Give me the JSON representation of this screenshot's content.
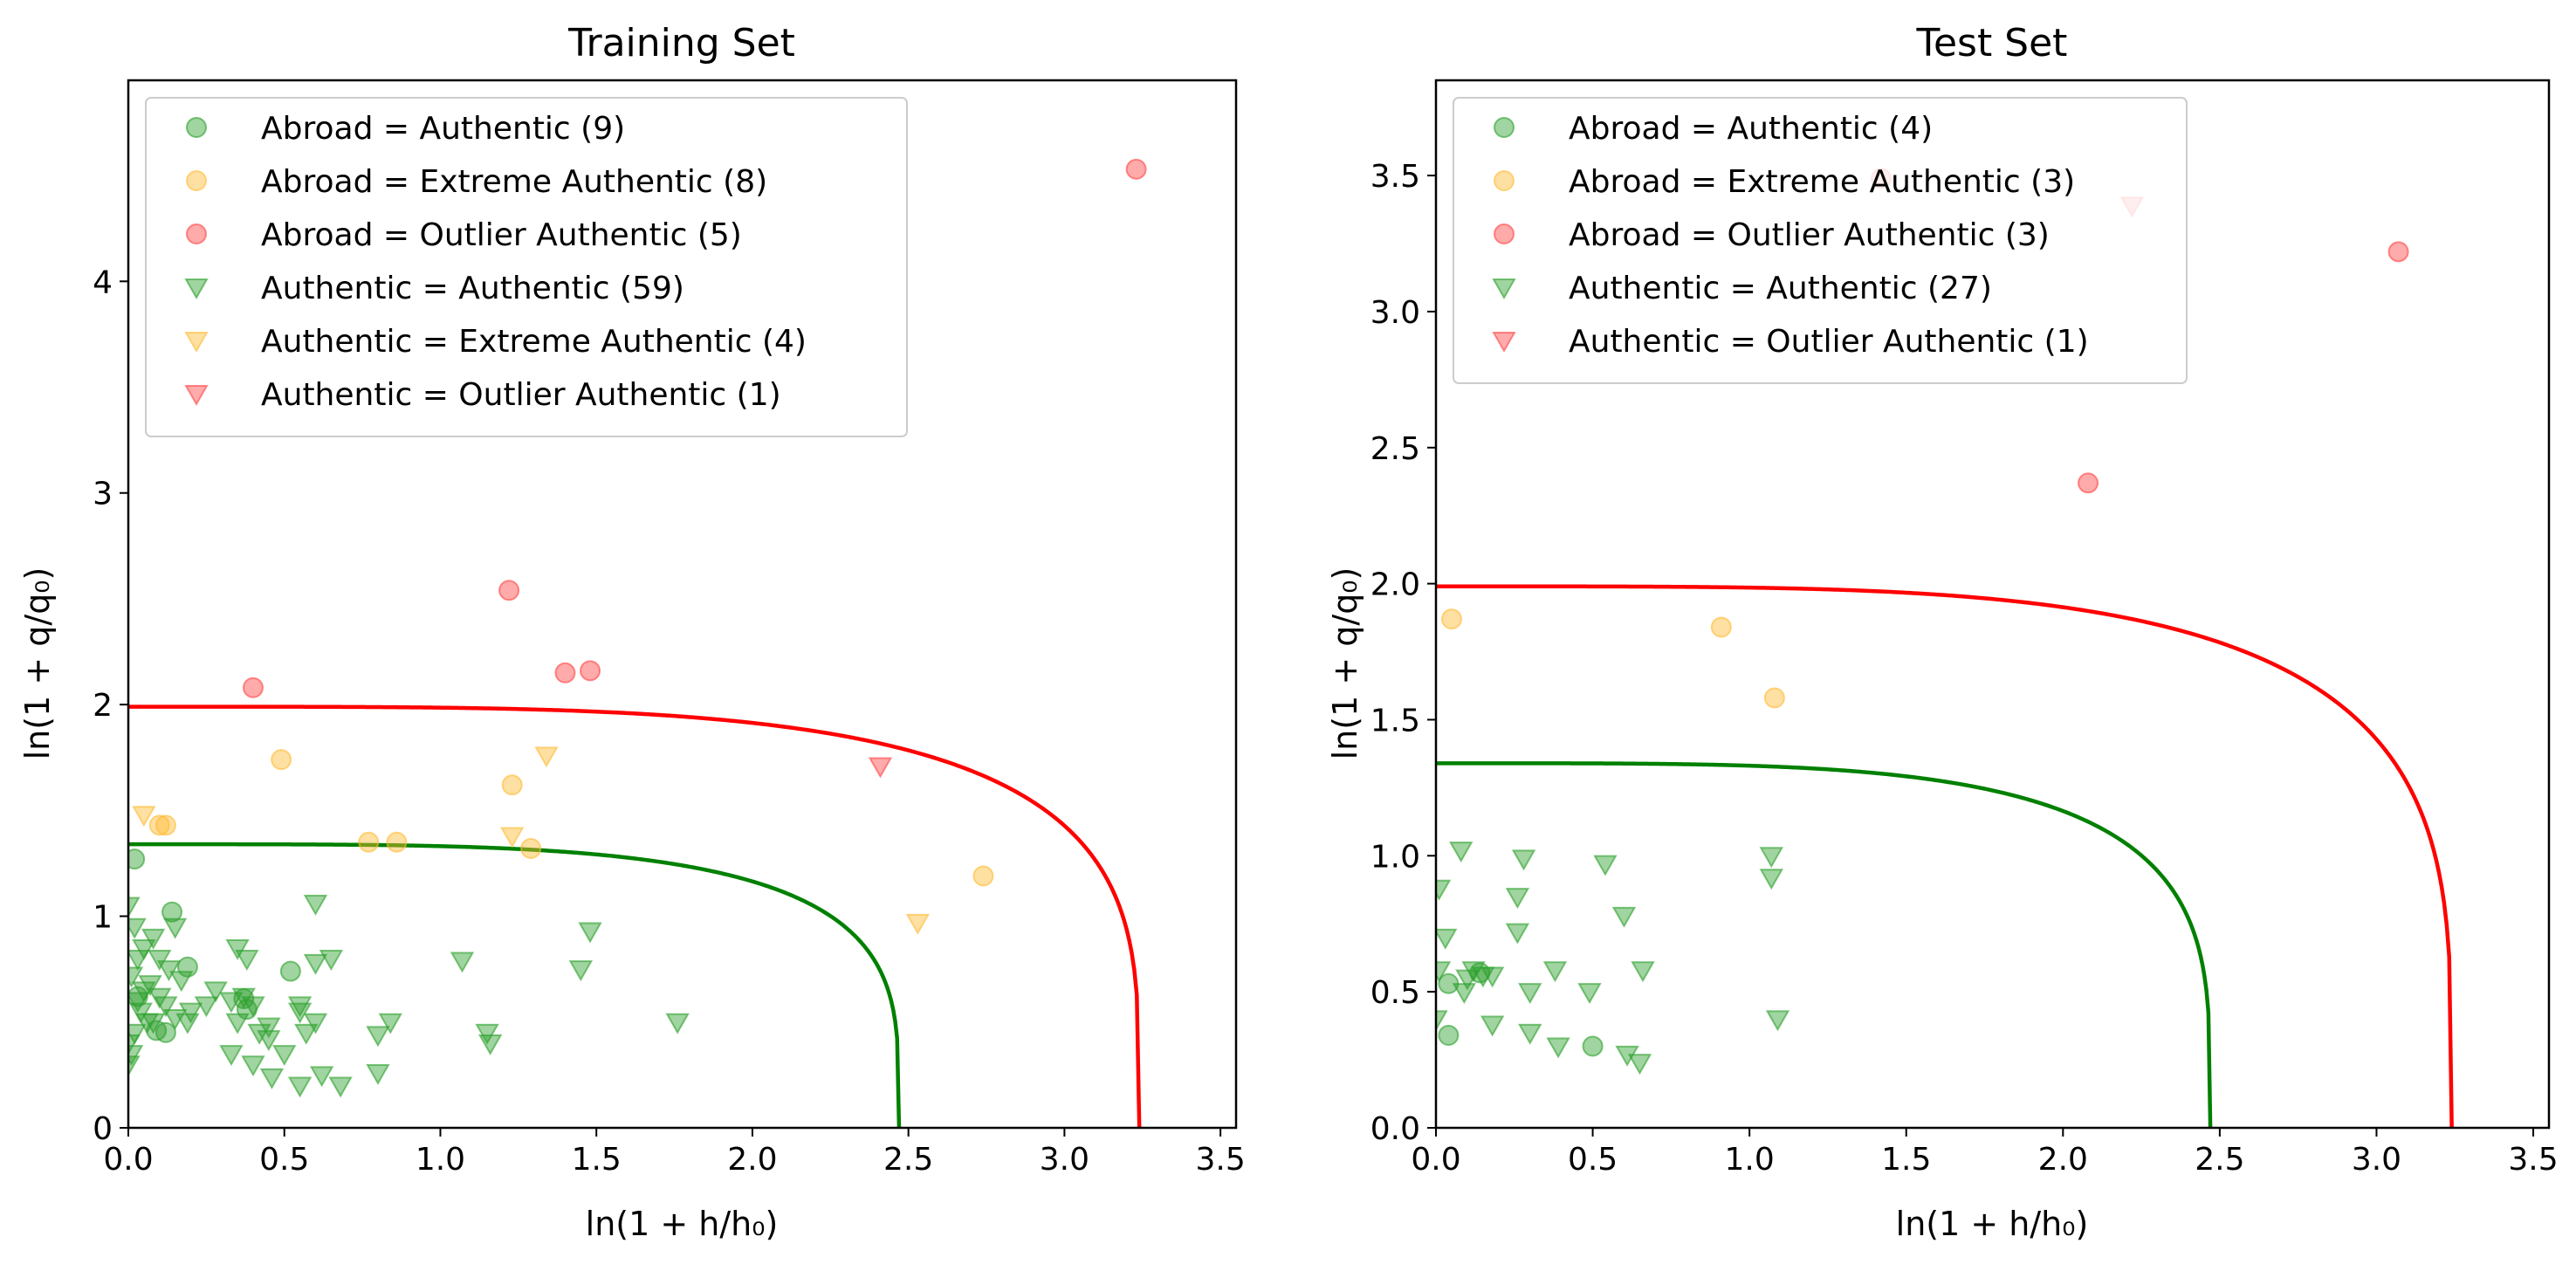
{
  "chart_data": [
    {
      "type": "scatter",
      "title": "Training Set",
      "xlabel": "ln(1 + h/h₀)",
      "ylabel": "ln(1 + q/q₀)",
      "xlim": [
        0,
        3.55
      ],
      "ylim": [
        0,
        4.95
      ],
      "xticks": [
        "0.0",
        "0.5",
        "1.0",
        "1.5",
        "2.0",
        "2.5",
        "3.0",
        "3.5"
      ],
      "yticks": [
        "0",
        "1",
        "2",
        "3",
        "4"
      ],
      "legend_position": "upper-left",
      "series": [
        {
          "name": "Abroad = Authentic (9)",
          "marker": "circle",
          "color": "#2ca02c",
          "points": [
            [
              0.02,
              1.27
            ],
            [
              0.14,
              1.02
            ],
            [
              0.19,
              0.76
            ],
            [
              0.09,
              0.46
            ],
            [
              0.12,
              0.45
            ],
            [
              0.37,
              0.61
            ],
            [
              0.38,
              0.56
            ],
            [
              0.52,
              0.74
            ],
            [
              0.03,
              0.62
            ]
          ]
        },
        {
          "name": "Abroad = Extreme Authentic (8)",
          "marker": "circle",
          "color": "#ffbb33",
          "points": [
            [
              0.1,
              1.43
            ],
            [
              0.12,
              1.43
            ],
            [
              0.49,
              1.74
            ],
            [
              0.77,
              1.35
            ],
            [
              0.86,
              1.35
            ],
            [
              1.23,
              1.62
            ],
            [
              1.29,
              1.32
            ],
            [
              2.74,
              1.19
            ]
          ]
        },
        {
          "name": "Abroad = Outlier Authentic (5)",
          "marker": "circle",
          "color": "#ff4444",
          "points": [
            [
              0.4,
              2.08
            ],
            [
              1.22,
              2.54
            ],
            [
              1.4,
              2.15
            ],
            [
              1.48,
              2.16
            ],
            [
              3.23,
              4.53
            ]
          ]
        },
        {
          "name": "Authentic = Authentic (59)",
          "marker": "triangle-down",
          "color": "#2ca02c",
          "points": [
            [
              0.0,
              1.05
            ],
            [
              0.02,
              0.95
            ],
            [
              0.05,
              0.85
            ],
            [
              0.08,
              0.9
            ],
            [
              0.1,
              0.8
            ],
            [
              0.13,
              0.75
            ],
            [
              0.15,
              0.95
            ],
            [
              0.17,
              0.7
            ],
            [
              0.2,
              0.55
            ],
            [
              0.19,
              0.5
            ],
            [
              0.01,
              0.72
            ],
            [
              0.03,
              0.6
            ],
            [
              0.04,
              0.55
            ],
            [
              0.06,
              0.5
            ],
            [
              0.02,
              0.45
            ],
            [
              0.0,
              0.4
            ],
            [
              0.01,
              0.35
            ],
            [
              0.0,
              0.3
            ],
            [
              0.05,
              0.65
            ],
            [
              0.07,
              0.68
            ],
            [
              0.1,
              0.62
            ],
            [
              0.12,
              0.58
            ],
            [
              0.03,
              0.8
            ],
            [
              0.08,
              0.5
            ],
            [
              0.15,
              0.52
            ],
            [
              0.35,
              0.85
            ],
            [
              0.38,
              0.8
            ],
            [
              0.33,
              0.6
            ],
            [
              0.37,
              0.62
            ],
            [
              0.4,
              0.58
            ],
            [
              0.35,
              0.5
            ],
            [
              0.42,
              0.45
            ],
            [
              0.45,
              0.42
            ],
            [
              0.33,
              0.35
            ],
            [
              0.4,
              0.3
            ],
            [
              0.46,
              0.24
            ],
            [
              0.55,
              0.2
            ],
            [
              0.62,
              0.25
            ],
            [
              0.68,
              0.2
            ],
            [
              0.55,
              0.55
            ],
            [
              0.6,
              0.5
            ],
            [
              0.57,
              0.45
            ],
            [
              0.6,
              1.06
            ],
            [
              0.6,
              0.78
            ],
            [
              0.65,
              0.8
            ],
            [
              0.8,
              0.44
            ],
            [
              0.84,
              0.5
            ],
            [
              0.8,
              0.26
            ],
            [
              1.07,
              0.79
            ],
            [
              1.15,
              0.45
            ],
            [
              1.16,
              0.4
            ],
            [
              1.45,
              0.75
            ],
            [
              1.48,
              0.93
            ],
            [
              1.76,
              0.5
            ],
            [
              0.45,
              0.48
            ],
            [
              0.25,
              0.58
            ],
            [
              0.28,
              0.65
            ],
            [
              0.5,
              0.35
            ],
            [
              0.55,
              0.58
            ]
          ]
        },
        {
          "name": "Authentic = Extreme Authentic (4)",
          "marker": "triangle-down",
          "color": "#ffbb33",
          "points": [
            [
              0.05,
              1.48
            ],
            [
              1.23,
              1.38
            ],
            [
              1.34,
              1.76
            ],
            [
              2.53,
              0.97
            ]
          ]
        },
        {
          "name": "Authentic = Outlier Authentic (1)",
          "marker": "triangle-down",
          "color": "#ff4444",
          "points": [
            [
              2.41,
              1.71
            ]
          ]
        }
      ],
      "curves": [
        {
          "color": "#008000",
          "x_intercept": 2.47,
          "y_intercept": 1.34
        },
        {
          "color": "#ff0000",
          "x_intercept": 3.24,
          "y_intercept": 1.99
        }
      ]
    },
    {
      "type": "scatter",
      "title": "Test Set",
      "xlabel": "ln(1 + h/h₀)",
      "ylabel": "ln(1 + q/q₀)",
      "xlim": [
        0,
        3.55
      ],
      "ylim": [
        0,
        3.85
      ],
      "xticks": [
        "0.0",
        "0.5",
        "1.0",
        "1.5",
        "2.0",
        "2.5",
        "3.0",
        "3.5"
      ],
      "yticks": [
        "0.0",
        "0.5",
        "1.0",
        "1.5",
        "2.0",
        "2.5",
        "3.0",
        "3.5"
      ],
      "legend_position": "upper-left",
      "series": [
        {
          "name": "Abroad = Authentic (4)",
          "marker": "circle",
          "color": "#2ca02c",
          "points": [
            [
              0.04,
              0.53
            ],
            [
              0.04,
              0.34
            ],
            [
              0.14,
              0.57
            ],
            [
              0.5,
              0.3
            ]
          ]
        },
        {
          "name": "Abroad = Extreme Authentic (3)",
          "marker": "circle",
          "color": "#ffbb33",
          "points": [
            [
              0.05,
              1.87
            ],
            [
              0.91,
              1.84
            ],
            [
              1.08,
              1.58
            ]
          ]
        },
        {
          "name": "Abroad = Outlier Authentic (3)",
          "marker": "circle",
          "color": "#ff4444",
          "points": [
            [
              2.08,
              2.37
            ],
            [
              3.07,
              3.22
            ],
            [
              1.42,
              3.49
            ]
          ]
        },
        {
          "name": "Authentic = Authentic (27)",
          "marker": "triangle-down",
          "color": "#2ca02c",
          "points": [
            [
              0.01,
              0.88
            ],
            [
              0.03,
              0.7
            ],
            [
              0.01,
              0.58
            ],
            [
              0.0,
              0.4
            ],
            [
              0.08,
              1.02
            ],
            [
              0.09,
              0.5
            ],
            [
              0.12,
              0.58
            ],
            [
              0.15,
              0.56
            ],
            [
              0.18,
              0.38
            ],
            [
              0.28,
              0.99
            ],
            [
              0.26,
              0.85
            ],
            [
              0.26,
              0.72
            ],
            [
              0.3,
              0.5
            ],
            [
              0.3,
              0.35
            ],
            [
              0.38,
              0.58
            ],
            [
              0.39,
              0.3
            ],
            [
              0.49,
              0.5
            ],
            [
              0.54,
              0.97
            ],
            [
              0.6,
              0.78
            ],
            [
              0.61,
              0.27
            ],
            [
              0.65,
              0.24
            ],
            [
              0.66,
              0.58
            ],
            [
              1.07,
              1.0
            ],
            [
              1.07,
              0.92
            ],
            [
              1.09,
              0.4
            ],
            [
              0.18,
              0.56
            ],
            [
              0.1,
              0.55
            ]
          ]
        },
        {
          "name": "Authentic = Outlier Authentic (1)",
          "marker": "triangle-down",
          "color": "#ff4444",
          "points": [
            [
              2.22,
              3.39
            ]
          ]
        }
      ],
      "curves": [
        {
          "color": "#008000",
          "x_intercept": 2.47,
          "y_intercept": 1.34
        },
        {
          "color": "#ff0000",
          "x_intercept": 3.24,
          "y_intercept": 1.99
        }
      ]
    }
  ]
}
